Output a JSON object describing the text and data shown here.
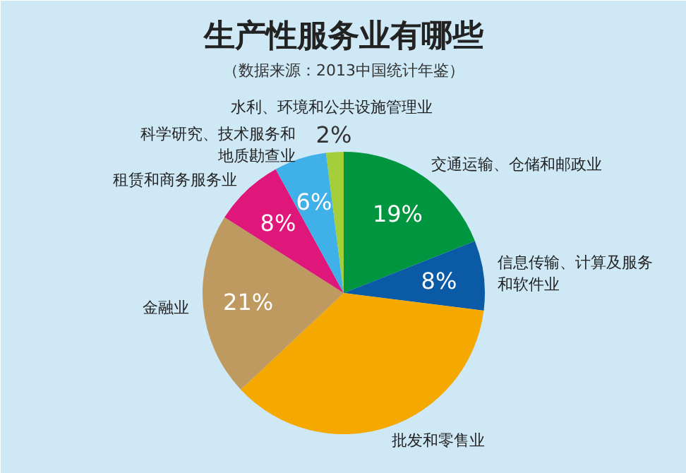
{
  "chart_data": {
    "type": "pie",
    "title": "生产性服务业有哪些",
    "subtitle": "（数据来源：2013中国统计年鉴）",
    "categories": [
      "交通运输、仓储和邮政业",
      "信息传输、计算及服务和软件业",
      "批发和零售业",
      "金融业",
      "租赁和商务服务业",
      "科学研究、技术服务和地质勘查业",
      "水利、环境和公共设施管理业"
    ],
    "values": [
      19,
      8,
      36,
      21,
      8,
      6,
      2
    ],
    "colors": [
      "#00963f",
      "#0a5aa5",
      "#f5a800",
      "#bf9a60",
      "#e0177a",
      "#3fb0e8",
      "#a5cf3a"
    ],
    "value_labels": [
      "19%",
      "8%",
      null,
      "21%",
      "8%",
      "6%",
      "2%"
    ]
  }
}
